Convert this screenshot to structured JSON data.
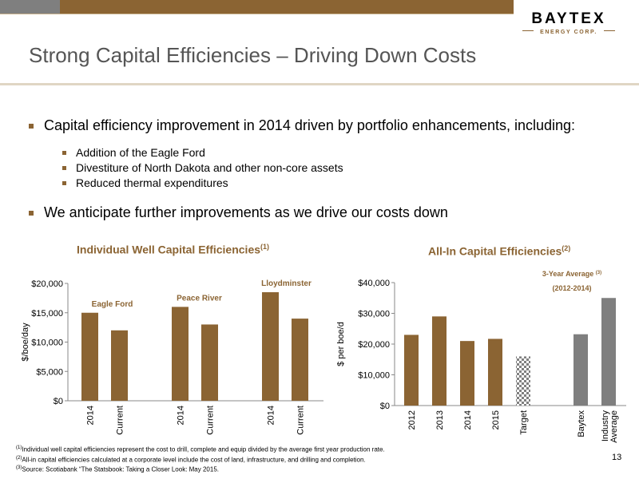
{
  "header": {
    "title": "Strong Capital Efficiencies – Driving Down Costs",
    "logo_word": "BAYTEX",
    "logo_sub": "ENERGY CORP."
  },
  "bullets": {
    "main1": "Capital efficiency improvement in 2014 driven by portfolio enhancements, including:",
    "sub": [
      "Addition of the Eagle Ford",
      "Divestiture of North Dakota and other non-core assets",
      "Reduced thermal expenditures"
    ],
    "main2": "We anticipate further improvements as we drive our costs down"
  },
  "colors": {
    "brown": "#8b6433",
    "grey": "#7f7f7f",
    "title_grey": "#555555"
  },
  "chart_left_title": {
    "text": "Individual Well Capital Efficiencies",
    "sup": "(1)"
  },
  "chart_right_title": {
    "text": "All-In Capital Efficiencies",
    "sup": "(2)"
  },
  "chart_data": [
    {
      "type": "bar",
      "ylabel": "$/boe/day",
      "ylim": [
        0,
        20000
      ],
      "yticks": [
        "$0",
        "$5,000",
        "$10,000",
        "$15,000",
        "$20,000"
      ],
      "tick_values": [
        0,
        5000,
        10000,
        15000,
        20000
      ],
      "groups": [
        {
          "name": "Eagle Ford",
          "categories": [
            "2014",
            "Current"
          ],
          "values": [
            15000,
            12000
          ]
        },
        {
          "name": "Peace River",
          "categories": [
            "2014",
            "Current"
          ],
          "values": [
            16000,
            13000
          ]
        },
        {
          "name": "Lloydminster",
          "categories": [
            "2014",
            "Current"
          ],
          "values": [
            18500,
            14000
          ]
        }
      ]
    },
    {
      "type": "bar",
      "ylabel": "$ per boe/d",
      "ylim": [
        0,
        40000
      ],
      "yticks": [
        "$0",
        "$10,000",
        "$20,000",
        "$30,000",
        "$40,000"
      ],
      "tick_values": [
        0,
        10000,
        20000,
        30000,
        40000
      ],
      "categories": [
        "2012",
        "2013",
        "2014",
        "2015",
        "Target",
        "Baytex",
        "Industry Average"
      ],
      "values": [
        23000,
        29000,
        21000,
        21700,
        16000,
        23200,
        35000
      ],
      "styles": [
        "brown",
        "brown",
        "brown",
        "brown",
        "checker",
        "grey",
        "grey"
      ],
      "annotation": {
        "line1": "3-Year Average",
        "sup": "(3)",
        "line2": "(2012-2014)"
      }
    }
  ],
  "footnotes": [
    {
      "sup": "(1)",
      "text": "Individual well capital efficiencies represent the cost to drill, complete and equip divided by the average first year production rate."
    },
    {
      "sup": "(2)",
      "text": "All-in capital efficiencies calculated at a corporate level include the cost of land, infrastructure, and drilling and completion."
    },
    {
      "sup": "(3)",
      "text": "Source: Scotiabank “The Statsbook: Taking a Closer Look: May 2015."
    }
  ],
  "page_number": "13"
}
